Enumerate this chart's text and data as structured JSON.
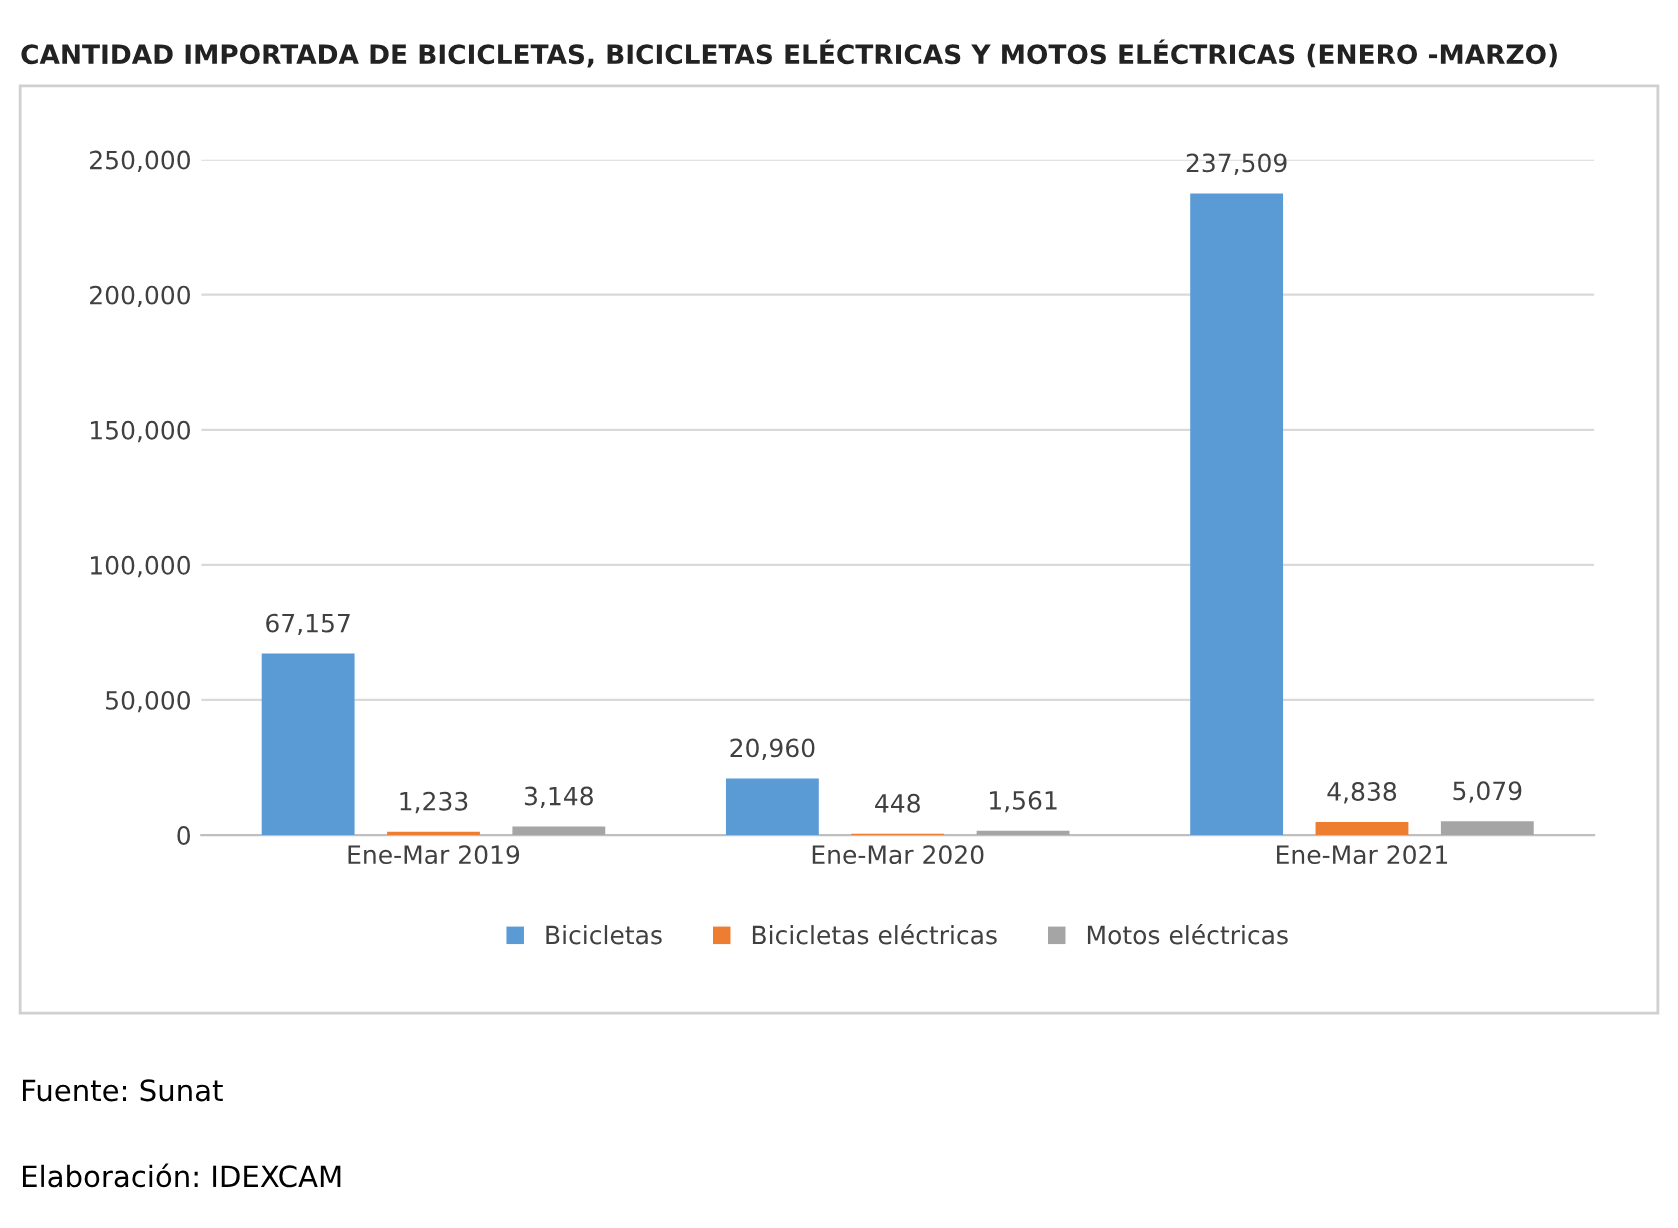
{
  "chart_data": {
    "type": "bar",
    "title": "CANTIDAD IMPORTADA DE BICICLETAS, BICICLETAS ELÉCTRICAS Y MOTOS ELÉCTRICAS (ENERO -MARZO)",
    "categories": [
      "Ene-Mar 2019",
      "Ene-Mar 2020",
      "Ene-Mar 2021"
    ],
    "series": [
      {
        "name": "Bicicletas",
        "color": "#5b9bd5",
        "values": [
          67157,
          20960,
          237509
        ]
      },
      {
        "name": "Bicicletas eléctricas",
        "color": "#ed7d31",
        "values": [
          1233,
          448,
          4838
        ]
      },
      {
        "name": "Motos eléctricas",
        "color": "#a5a5a5",
        "values": [
          3148,
          1561,
          5079
        ]
      }
    ],
    "ylim": [
      0,
      250000
    ],
    "yticks": [
      {
        "value": 0,
        "label": "0"
      },
      {
        "value": 50000,
        "label": "50,000"
      },
      {
        "value": 100000,
        "label": "100,000"
      },
      {
        "value": 150000,
        "label": "150,000"
      },
      {
        "value": 200000,
        "label": "200,000"
      },
      {
        "value": 250000,
        "label": "250,000"
      }
    ],
    "grid": "y",
    "legend": "bottom",
    "value_labels": [
      [
        "67,157",
        "20,960",
        "237,509"
      ],
      [
        "1,233",
        "448",
        "4,838"
      ],
      [
        "3,148",
        "1,561",
        "5,079"
      ]
    ],
    "annotations": [
      "Fuente: Sunat",
      "Elaboración: IDEXCAM"
    ]
  }
}
